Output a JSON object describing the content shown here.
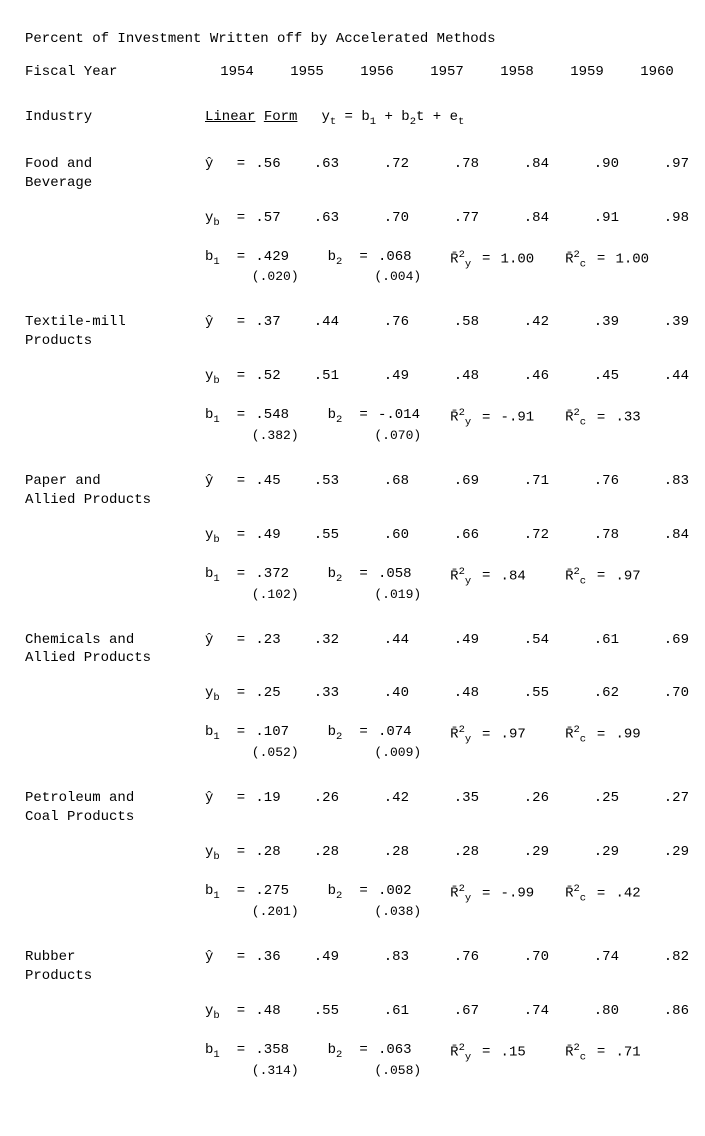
{
  "title": "Percent of Investment Written off by Accelerated Methods",
  "fiscal_label": "Fiscal Year",
  "industry_label": "Industry",
  "years": [
    "1954",
    "1955",
    "1956",
    "1957",
    "1958",
    "1959",
    "1960"
  ],
  "header_linear": "Linear",
  "header_form": "Form",
  "formula_plain": "yₜ = b₁ + b₂t + eₜ",
  "yhat_sym": "ŷ",
  "yb_sym": "y_b",
  "b1_sym": "b₁",
  "b2_sym": "b₂",
  "r2y_sym": "R̄²_y",
  "r2c_sym": "R̄²_c",
  "industries": [
    {
      "name": "Food and\nBeverage",
      "yhat": [
        ".56",
        ".63",
        ".72",
        ".78",
        ".84",
        ".90",
        ".97"
      ],
      "yb": [
        ".57",
        ".63",
        ".70",
        ".77",
        ".84",
        ".91",
        ".98"
      ],
      "b1": ".429",
      "b1_se": "(.020)",
      "b2": ".068",
      "b2_se": "(.004)",
      "r2y": "1.00",
      "r2c": "1.00"
    },
    {
      "name": "Textile-mill\nProducts",
      "yhat": [
        ".37",
        ".44",
        ".76",
        ".58",
        ".42",
        ".39",
        ".39"
      ],
      "yb": [
        ".52",
        ".51",
        ".49",
        ".48",
        ".46",
        ".45",
        ".44"
      ],
      "b1": ".548",
      "b1_se": "(.382)",
      "b2": "-.014",
      "b2_se": "(.070)",
      "r2y": "-.91",
      "r2c": ".33"
    },
    {
      "name": "Paper and\nAllied Products",
      "yhat": [
        ".45",
        ".53",
        ".68",
        ".69",
        ".71",
        ".76",
        ".83"
      ],
      "yb": [
        ".49",
        ".55",
        ".60",
        ".66",
        ".72",
        ".78",
        ".84"
      ],
      "b1": ".372",
      "b1_se": "(.102)",
      "b2": ".058",
      "b2_se": "(.019)",
      "r2y": ".84",
      "r2c": ".97"
    },
    {
      "name": "Chemicals and\nAllied Products",
      "yhat": [
        ".23",
        ".32",
        ".44",
        ".49",
        ".54",
        ".61",
        ".69"
      ],
      "yb": [
        ".25",
        ".33",
        ".40",
        ".48",
        ".55",
        ".62",
        ".70"
      ],
      "b1": ".107",
      "b1_se": "(.052)",
      "b2": ".074",
      "b2_se": "(.009)",
      "r2y": ".97",
      "r2c": ".99"
    },
    {
      "name": "Petroleum and\nCoal Products",
      "yhat": [
        ".19",
        ".26",
        ".42",
        ".35",
        ".26",
        ".25",
        ".27"
      ],
      "yb": [
        ".28",
        ".28",
        ".28",
        ".28",
        ".29",
        ".29",
        ".29"
      ],
      "b1": ".275",
      "b1_se": "(.201)",
      "b2": ".002",
      "b2_se": "(.038)",
      "r2y": "-.99",
      "r2c": ".42"
    },
    {
      "name": "Rubber\nProducts",
      "yhat": [
        ".36",
        ".49",
        ".83",
        ".76",
        ".70",
        ".74",
        ".82"
      ],
      "yb": [
        ".48",
        ".55",
        ".61",
        ".67",
        ".74",
        ".80",
        ".86"
      ],
      "b1": ".358",
      "b1_se": "(.314)",
      "b2": ".063",
      "b2_se": "(.058)",
      "r2y": ".15",
      "r2c": ".71"
    }
  ]
}
